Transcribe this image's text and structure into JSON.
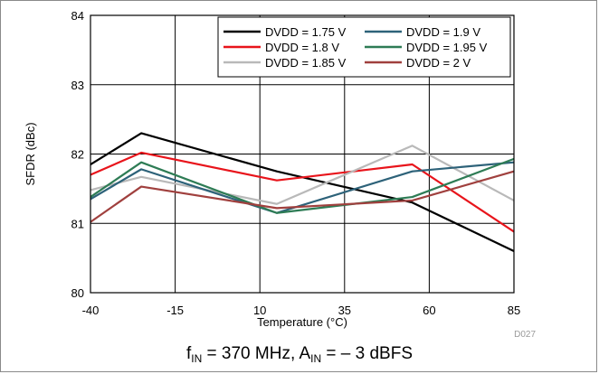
{
  "chart_data": {
    "type": "line",
    "title": "",
    "xlabel": "Temperature (°C)",
    "ylabel": "SFDR (dBc)",
    "xlim": [
      -40,
      85
    ],
    "ylim": [
      80,
      84
    ],
    "xticks": [
      "-40",
      "-15",
      "10",
      "35",
      "60",
      "85"
    ],
    "yticks": [
      "80",
      "81",
      "82",
      "83",
      "84"
    ],
    "grid": true,
    "legend_position": "top-right",
    "figure_id": "D027",
    "caption": {
      "f_base": "f",
      "f_sub": "IN",
      "mid": " = 370 MHz, A",
      "a_sub": "IN",
      "tail": " =  – 3 dBFS"
    },
    "x": [
      -40,
      -25,
      15,
      55,
      85
    ],
    "series": [
      {
        "name": "DVDD = 1.75 V",
        "color": "#000000",
        "values": [
          81.85,
          82.3,
          81.75,
          81.3,
          80.6
        ]
      },
      {
        "name": "DVDD = 1.8 V",
        "color": "#e8141b",
        "values": [
          81.7,
          82.02,
          81.62,
          81.85,
          80.88
        ]
      },
      {
        "name": "DVDD = 1.85 V",
        "color": "#b9b9b9",
        "values": [
          81.48,
          81.67,
          81.28,
          82.12,
          81.33
        ]
      },
      {
        "name": "DVDD = 1.9 V",
        "color": "#2d6279",
        "values": [
          81.35,
          81.78,
          81.15,
          81.75,
          81.88
        ]
      },
      {
        "name": "DVDD = 1.95 V",
        "color": "#2e7c55",
        "values": [
          81.38,
          81.88,
          81.15,
          81.38,
          81.93
        ]
      },
      {
        "name": "DVDD = 2 V",
        "color": "#a0403e",
        "values": [
          81.02,
          81.53,
          81.22,
          81.33,
          81.75
        ]
      }
    ]
  }
}
